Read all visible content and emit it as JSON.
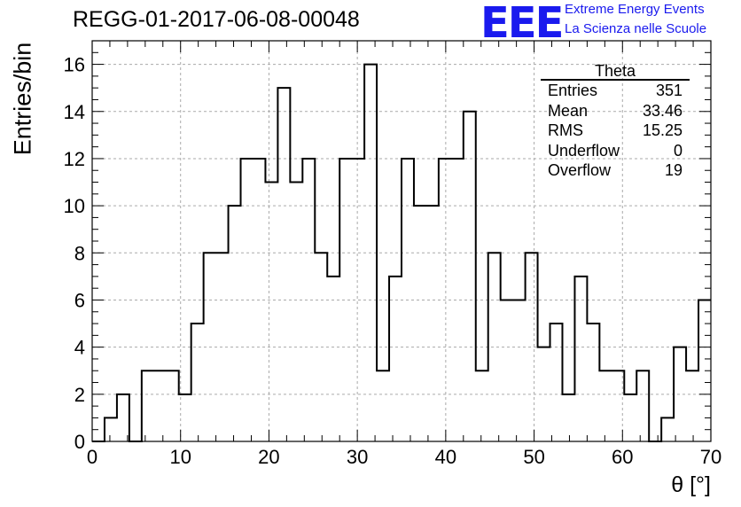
{
  "title": "REGG-01-2017-06-08-00048",
  "logo": {
    "text": "EEE",
    "line1": "Extreme Energy Events",
    "line2": "La Scienza nelle Scuole"
  },
  "stats": {
    "title": "Theta",
    "rows": [
      {
        "label": "Entries",
        "value": "351"
      },
      {
        "label": "Mean",
        "value": "33.46"
      },
      {
        "label": "RMS",
        "value": "15.25"
      },
      {
        "label": "Underflow",
        "value": "0"
      },
      {
        "label": "Overflow",
        "value": "19"
      }
    ]
  },
  "chart_data": {
    "type": "bar",
    "style": "step histogram",
    "xlabel": "θ [°]",
    "ylabel": "Entries/bin",
    "xlim": [
      0,
      70
    ],
    "ylim": [
      0,
      17
    ],
    "xticks": [
      0,
      10,
      20,
      30,
      40,
      50,
      60,
      70
    ],
    "yticks": [
      0,
      2,
      4,
      6,
      8,
      10,
      12,
      14,
      16
    ],
    "grid": true,
    "bin_width": 1.4,
    "bin_edges_start": 0,
    "values": [
      0,
      1,
      2,
      0,
      3,
      3,
      3,
      2,
      5,
      8,
      8,
      10,
      12,
      12,
      11,
      15,
      11,
      12,
      8,
      7,
      12,
      12,
      16,
      3,
      7,
      12,
      10,
      10,
      12,
      12,
      14,
      3,
      8,
      6,
      6,
      8,
      4,
      5,
      2,
      7,
      5,
      3,
      3,
      2,
      3,
      0,
      1,
      4,
      3,
      6
    ],
    "colors": {
      "line": "#000000",
      "grid": "#aaaaaa"
    }
  }
}
